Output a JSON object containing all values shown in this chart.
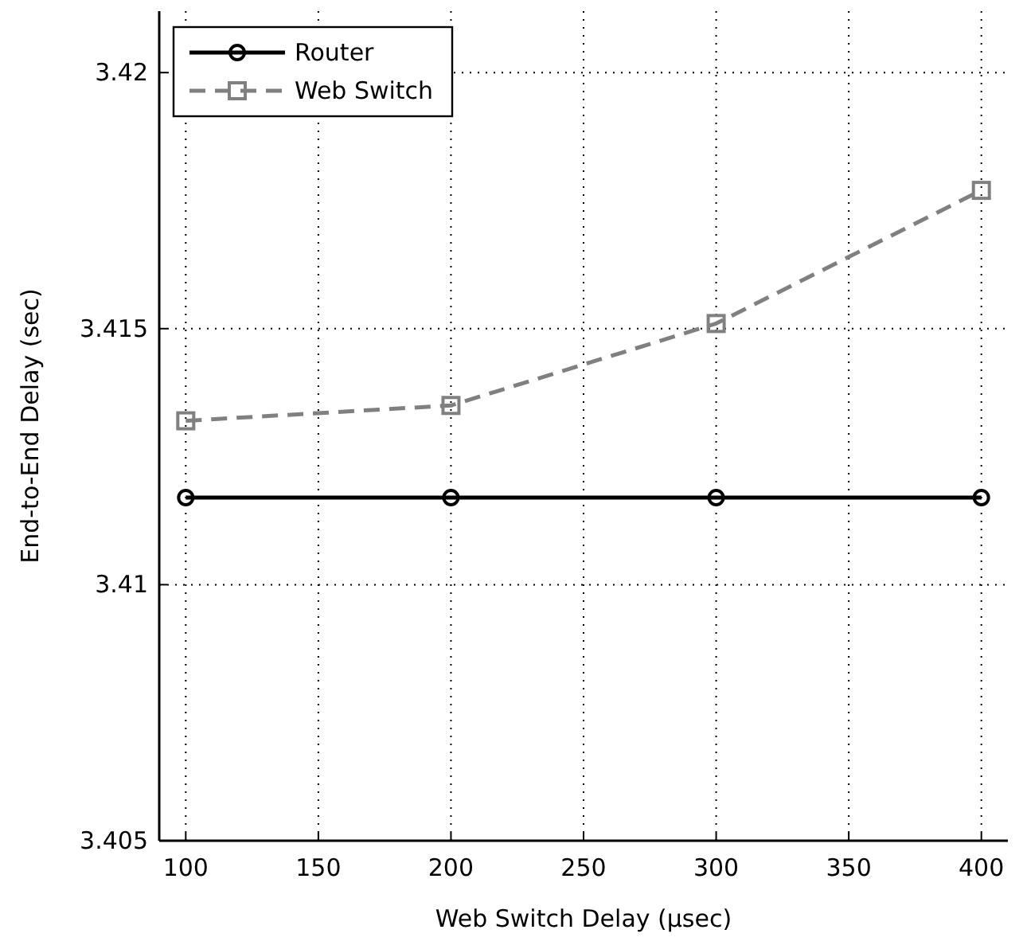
{
  "chart_data": {
    "type": "line",
    "xlabel": "Web Switch Delay (µsec)",
    "ylabel": "End-to-End Delay (sec)",
    "x": [
      100,
      200,
      300,
      400
    ],
    "series": [
      {
        "name": "Router",
        "color": "#000000",
        "values": [
          3.4117,
          3.4117,
          3.4117,
          3.4117
        ],
        "marker": "circle",
        "line_style": "solid"
      },
      {
        "name": "Web Switch",
        "color": "#808080",
        "values": [
          3.4132,
          3.4135,
          3.4151,
          3.4177
        ],
        "marker": "square",
        "line_style": "dashed"
      }
    ],
    "xlim": [
      90,
      410
    ],
    "xticks": [
      100,
      150,
      200,
      250,
      300,
      350,
      400
    ],
    "ylim": [
      3.405,
      3.4212
    ],
    "yticks": [
      3.405,
      3.41,
      3.415,
      3.42
    ],
    "grid": true,
    "legend": "top left"
  }
}
